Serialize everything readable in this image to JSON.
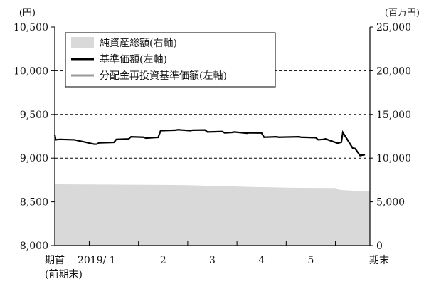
{
  "chart_data": {
    "type": "line",
    "units": {
      "left": "(円)",
      "right": "(百万円)"
    },
    "left_axis": {
      "range": [
        8000,
        10500
      ],
      "ticks": [
        8000,
        8500,
        9000,
        9500,
        10000,
        10500
      ],
      "tick_labels": [
        "8,000",
        "8,500",
        "9,000",
        "9,500",
        "10,000",
        "10,500"
      ]
    },
    "right_axis": {
      "range": [
        0,
        25000
      ],
      "ticks": [
        0,
        5000,
        10000,
        15000,
        20000,
        25000
      ],
      "tick_labels": [
        "0",
        "5,000",
        "10,000",
        "15,000",
        "20,000",
        "25,000"
      ]
    },
    "x_range": [
      0,
      6.4
    ],
    "x_ticks": [
      0.7,
      1.7,
      2.7,
      3.7,
      4.7,
      5.7
    ],
    "x_labels": [
      {
        "x": 0.0,
        "text": "期首",
        "sub": "(前期末)"
      },
      {
        "x": 0.85,
        "text": "2019/ 1"
      },
      {
        "x": 2.2,
        "text": "2"
      },
      {
        "x": 3.2,
        "text": "3"
      },
      {
        "x": 4.2,
        "text": "4"
      },
      {
        "x": 5.2,
        "text": "5"
      },
      {
        "x": 6.4,
        "text": "期末"
      }
    ],
    "dashed_gridlines_left": [
      9000,
      9500,
      10000
    ],
    "legend": {
      "placement": "top-left",
      "entries": [
        {
          "label": "純資産総額(右軸)",
          "kind": "area",
          "color": "#d9d9d9"
        },
        {
          "label": "基準価額(左軸)",
          "kind": "line",
          "color": "#000000"
        },
        {
          "label": "分配金再投資基準価額(左軸)",
          "kind": "line",
          "color": "#9a9a9a"
        }
      ]
    },
    "series": [
      {
        "name": "純資産総額(右軸)",
        "axis": "right",
        "type": "area",
        "color": "#d9d9d9",
        "x": [
          0,
          0.7,
          1.5,
          2.2,
          2.7,
          3.0,
          3.7,
          4.0,
          4.7,
          5.0,
          5.7,
          5.8,
          6.4
        ],
        "y": [
          7000,
          6980,
          6950,
          6930,
          6900,
          6850,
          6750,
          6700,
          6620,
          6600,
          6580,
          6350,
          6180
        ]
      },
      {
        "name": "基準価額(左軸)",
        "axis": "left",
        "type": "line",
        "color": "#000000",
        "x": [
          0,
          0.02,
          0.1,
          0.4,
          0.6,
          0.8,
          0.85,
          0.9,
          1.2,
          1.25,
          1.5,
          1.55,
          1.8,
          1.85,
          2.1,
          2.15,
          2.45,
          2.5,
          2.75,
          2.8,
          3.05,
          3.1,
          3.4,
          3.45,
          3.6,
          3.65,
          3.9,
          3.95,
          4.2,
          4.25,
          4.5,
          4.55,
          4.95,
          5.0,
          5.3,
          5.35,
          5.45,
          5.5,
          5.75,
          5.8,
          5.82,
          5.85,
          6.05,
          6.1,
          6.2,
          6.25,
          6.3
        ],
        "y": [
          9270,
          9210,
          9215,
          9210,
          9185,
          9160,
          9160,
          9175,
          9180,
          9215,
          9220,
          9245,
          9240,
          9230,
          9238,
          9315,
          9320,
          9325,
          9315,
          9320,
          9322,
          9300,
          9305,
          9290,
          9295,
          9300,
          9285,
          9290,
          9288,
          9240,
          9245,
          9240,
          9245,
          9240,
          9235,
          9210,
          9215,
          9220,
          9170,
          9180,
          9182,
          9295,
          9115,
          9110,
          9030,
          9035,
          9040
        ]
      },
      {
        "name": "分配金再投資基準価額(左軸)",
        "axis": "left",
        "type": "line",
        "color": "#9a9a9a",
        "x": [],
        "y": []
      }
    ]
  }
}
